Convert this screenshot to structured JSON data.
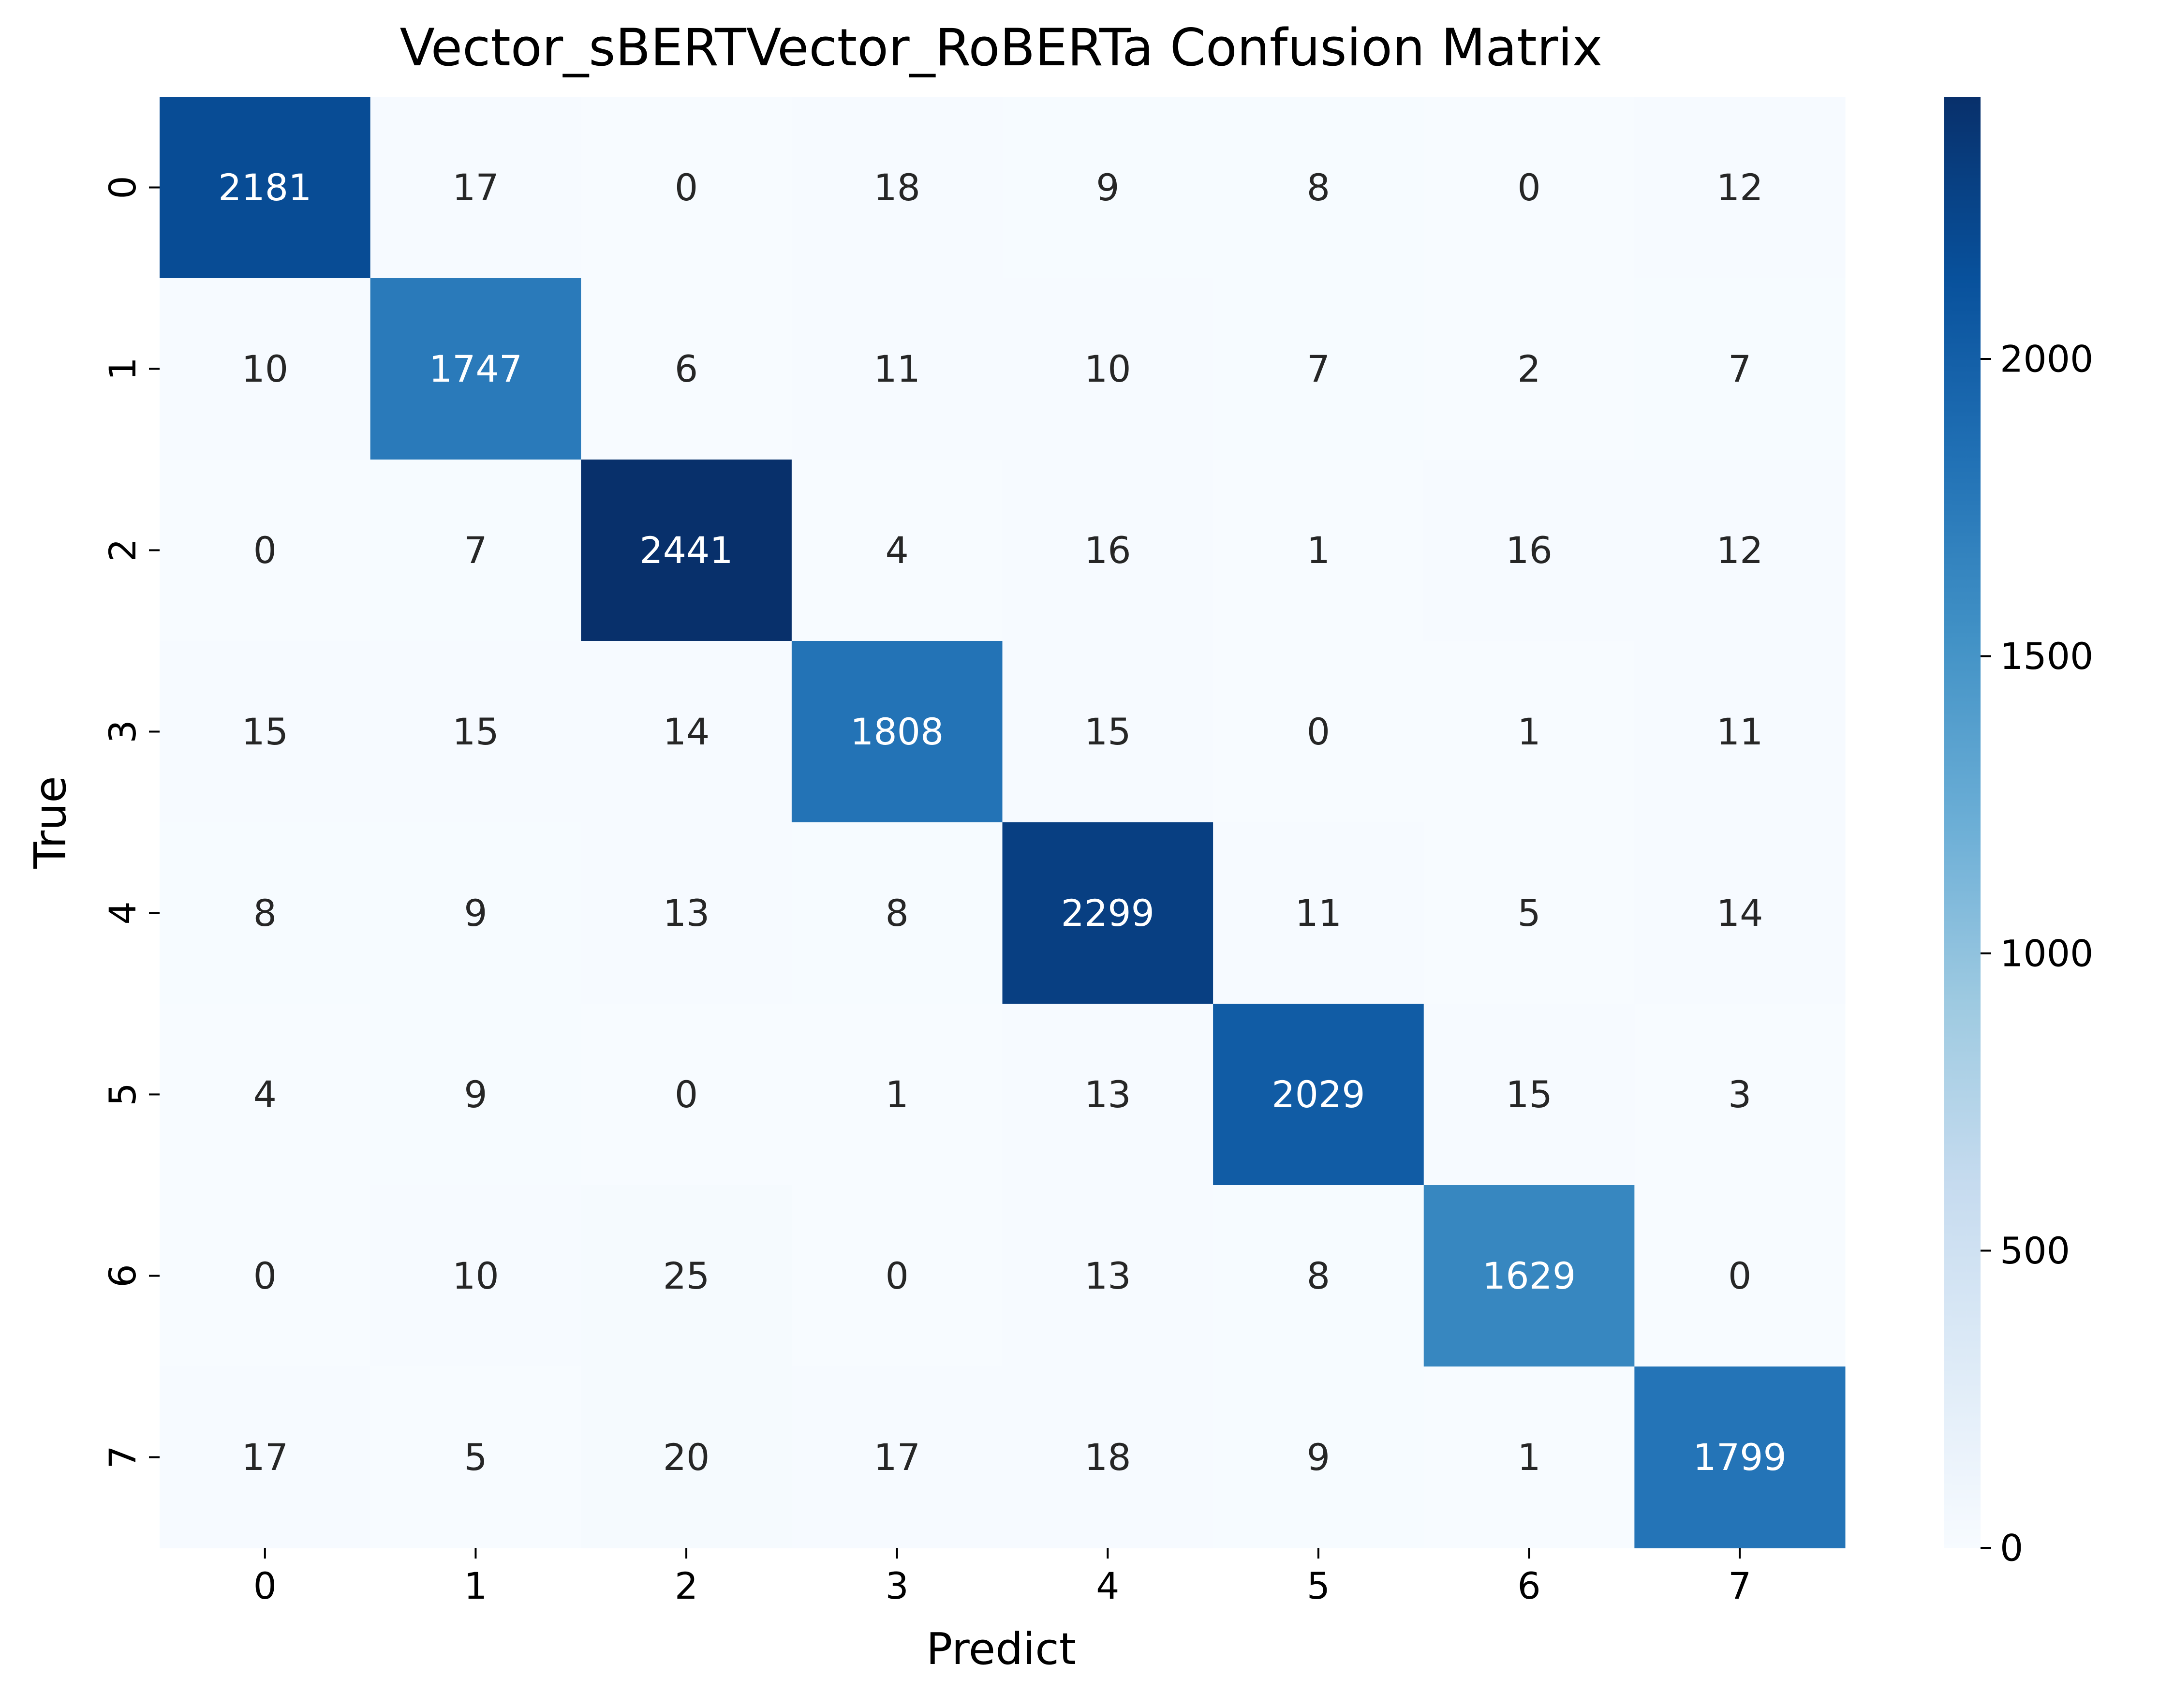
{
  "chart_data": {
    "type": "heatmap",
    "title": "Vector_sBERTVector_RoBERTa Confusion Matrix",
    "xlabel": "Predict",
    "ylabel": "True",
    "x_categories": [
      "0",
      "1",
      "2",
      "3",
      "4",
      "5",
      "6",
      "7"
    ],
    "y_categories": [
      "0",
      "1",
      "2",
      "3",
      "4",
      "5",
      "6",
      "7"
    ],
    "values": [
      [
        2181,
        17,
        0,
        18,
        9,
        8,
        0,
        12
      ],
      [
        10,
        1747,
        6,
        11,
        10,
        7,
        2,
        7
      ],
      [
        0,
        7,
        2441,
        4,
        16,
        1,
        16,
        12
      ],
      [
        15,
        15,
        14,
        1808,
        15,
        0,
        1,
        11
      ],
      [
        8,
        9,
        13,
        8,
        2299,
        11,
        5,
        14
      ],
      [
        4,
        9,
        0,
        1,
        13,
        2029,
        15,
        3
      ],
      [
        0,
        10,
        25,
        0,
        13,
        8,
        1629,
        0
      ],
      [
        17,
        5,
        20,
        17,
        18,
        9,
        1,
        1799
      ]
    ],
    "colorbar": {
      "colormap": "Blues",
      "range": [
        0,
        2441
      ],
      "ticks": [
        0,
        500,
        1000,
        1500,
        2000
      ],
      "tick_labels": [
        "0",
        "500",
        "1000",
        "1500",
        "2000"
      ]
    },
    "annotation_colors": {
      "dark_cell_text": "#ffffff",
      "light_cell_text": "#262626"
    },
    "legend": "none",
    "grid": false
  }
}
